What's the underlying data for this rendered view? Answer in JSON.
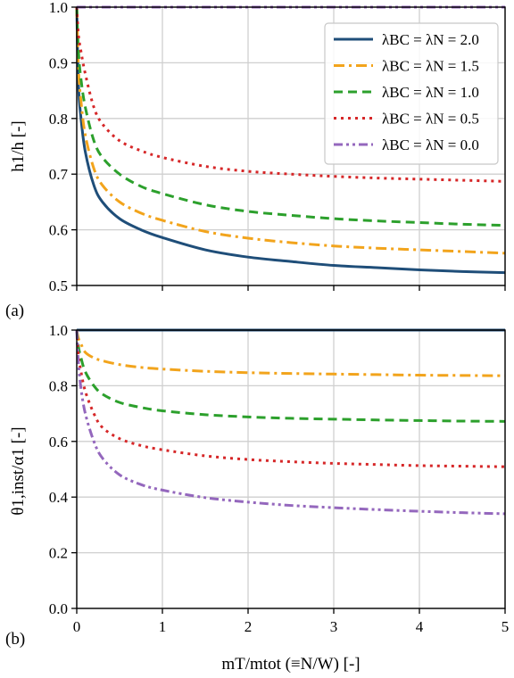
{
  "colors": {
    "lambda_2_0": "#1f4e79",
    "lambda_1_5": "#f2a41c",
    "lambda_1_0": "#2ca02c",
    "lambda_0_5": "#d62728",
    "lambda_0_0": "#9467bd"
  },
  "chart_data": [
    {
      "type": "line",
      "panel": "(a)",
      "ylabel": "h1/h [-]",
      "xlim": [
        0,
        5
      ],
      "ylim": [
        0.5,
        1.0
      ],
      "xticks": [
        "0",
        "1",
        "2",
        "3",
        "4",
        "5"
      ],
      "yticks": [
        "0.5",
        "0.6",
        "0.7",
        "0.8",
        "0.9",
        "1.0"
      ],
      "grid": true,
      "legend_position": "top-right",
      "x": [
        0,
        0.02,
        0.05,
        0.1,
        0.2,
        0.3,
        0.5,
        0.75,
        1.0,
        1.5,
        2.0,
        2.5,
        3.0,
        3.5,
        4.0,
        4.5,
        5.0
      ],
      "series": [
        {
          "name": "λBC = λN = 2.0",
          "key": "lambda_2_0",
          "style": "solid",
          "values": [
            1.0,
            0.86,
            0.8,
            0.74,
            0.68,
            0.65,
            0.62,
            0.6,
            0.586,
            0.564,
            0.551,
            0.543,
            0.536,
            0.532,
            0.528,
            0.525,
            0.523
          ]
        },
        {
          "name": "λBC = λN = 1.5",
          "key": "lambda_1_5",
          "style": "dashdot",
          "values": [
            1.0,
            0.89,
            0.83,
            0.77,
            0.71,
            0.68,
            0.65,
            0.63,
            0.617,
            0.597,
            0.585,
            0.577,
            0.571,
            0.567,
            0.564,
            0.561,
            0.558
          ]
        },
        {
          "name": "λBC = λN = 1.0",
          "key": "lambda_1_0",
          "style": "dashed",
          "values": [
            1.0,
            0.92,
            0.87,
            0.82,
            0.76,
            0.73,
            0.7,
            0.678,
            0.665,
            0.645,
            0.633,
            0.626,
            0.62,
            0.616,
            0.613,
            0.61,
            0.608
          ]
        },
        {
          "name": "λBC = λN = 0.5",
          "key": "lambda_0_5",
          "style": "dotted",
          "values": [
            1.0,
            0.95,
            0.92,
            0.88,
            0.82,
            0.79,
            0.76,
            0.742,
            0.73,
            0.714,
            0.705,
            0.7,
            0.696,
            0.693,
            0.691,
            0.689,
            0.687
          ]
        },
        {
          "name": "λBC = λN = 0.0",
          "key": "lambda_0_0",
          "style": "dashdotdot",
          "values": [
            1.0,
            1.0,
            1.0,
            1.0,
            1.0,
            1.0,
            1.0,
            1.0,
            1.0,
            1.0,
            1.0,
            1.0,
            1.0,
            1.0,
            1.0,
            1.0,
            1.0
          ]
        }
      ]
    },
    {
      "type": "line",
      "panel": "(b)",
      "ylabel": "θ1,inst/α1 [-]",
      "xlabel": "mT/mtot (≡N/W) [-]",
      "xlim": [
        0,
        5
      ],
      "ylim": [
        0.0,
        1.0
      ],
      "xticks": [
        "0",
        "1",
        "2",
        "3",
        "4",
        "5"
      ],
      "yticks": [
        "0.0",
        "0.2",
        "0.4",
        "0.6",
        "0.8",
        "1.0"
      ],
      "grid": true,
      "x": [
        0,
        0.02,
        0.05,
        0.1,
        0.2,
        0.3,
        0.5,
        0.75,
        1.0,
        1.5,
        2.0,
        2.5,
        3.0,
        3.5,
        4.0,
        4.5,
        5.0
      ],
      "series": [
        {
          "key": "lambda_2_0",
          "style": "solid",
          "values": [
            1.0,
            1.0,
            1.0,
            1.0,
            1.0,
            1.0,
            1.0,
            1.0,
            1.0,
            1.0,
            1.0,
            1.0,
            1.0,
            1.0,
            1.0,
            1.0,
            1.0
          ]
        },
        {
          "key": "lambda_1_5",
          "style": "dashdot",
          "values": [
            1.0,
            0.97,
            0.95,
            0.92,
            0.9,
            0.89,
            0.876,
            0.866,
            0.86,
            0.852,
            0.847,
            0.844,
            0.842,
            0.84,
            0.838,
            0.837,
            0.836
          ]
        },
        {
          "key": "lambda_1_0",
          "style": "dashed",
          "values": [
            1.0,
            0.94,
            0.9,
            0.85,
            0.8,
            0.77,
            0.74,
            0.722,
            0.71,
            0.696,
            0.688,
            0.683,
            0.68,
            0.677,
            0.675,
            0.673,
            0.672
          ]
        },
        {
          "key": "lambda_0_5",
          "style": "dotted",
          "values": [
            1.0,
            0.91,
            0.85,
            0.78,
            0.7,
            0.65,
            0.61,
            0.585,
            0.57,
            0.548,
            0.535,
            0.527,
            0.521,
            0.517,
            0.513,
            0.511,
            0.509
          ]
        },
        {
          "key": "lambda_0_0",
          "style": "dashdotdot",
          "values": [
            1.0,
            0.88,
            0.79,
            0.7,
            0.6,
            0.54,
            0.48,
            0.445,
            0.425,
            0.398,
            0.382,
            0.37,
            0.362,
            0.355,
            0.349,
            0.344,
            0.34
          ]
        }
      ]
    }
  ]
}
